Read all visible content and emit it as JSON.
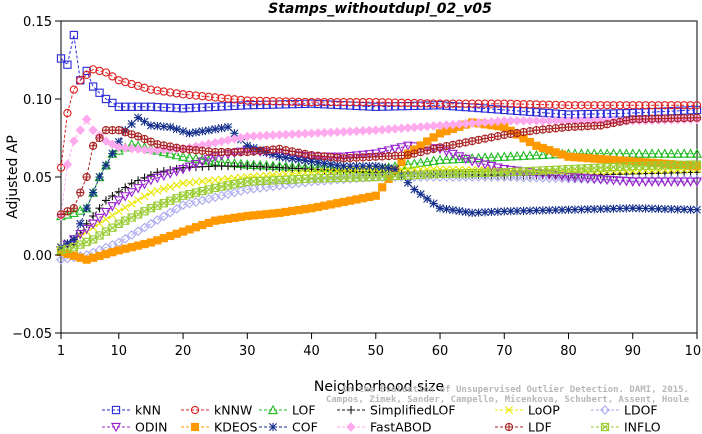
{
  "chart_data": {
    "type": "line",
    "title": "Stamps_withoutdupl_02_v05",
    "xlabel": "Neighborhood size",
    "ylabel": "Adjusted AP",
    "xlim": [
      1,
      100
    ],
    "ylim": [
      -0.05,
      0.15
    ],
    "xticks": [
      1,
      10,
      20,
      30,
      40,
      50,
      60,
      70,
      80,
      90,
      100
    ],
    "yticks": [
      -0.05,
      0.0,
      0.05,
      0.1,
      0.15
    ],
    "ytick_labels": [
      "−0.05",
      "0.00",
      "0.05",
      "0.10",
      "0.15"
    ],
    "grid": false,
    "legend_position": "bottom",
    "series": [
      {
        "name": "kNN",
        "color": "#2a2ad8",
        "marker": "square",
        "points": [
          [
            1,
            0.126
          ],
          [
            2,
            0.122
          ],
          [
            3,
            0.141
          ],
          [
            4,
            0.112
          ],
          [
            5,
            0.118
          ],
          [
            6,
            0.108
          ],
          [
            8,
            0.1
          ],
          [
            10,
            0.095
          ],
          [
            15,
            0.095
          ],
          [
            20,
            0.094
          ],
          [
            30,
            0.096
          ],
          [
            40,
            0.097
          ],
          [
            50,
            0.095
          ],
          [
            60,
            0.096
          ],
          [
            70,
            0.093
          ],
          [
            80,
            0.09
          ],
          [
            90,
            0.091
          ],
          [
            100,
            0.093
          ]
        ]
      },
      {
        "name": "kNNW",
        "color": "#e02020",
        "marker": "circle",
        "points": [
          [
            1,
            0.056
          ],
          [
            2,
            0.091
          ],
          [
            3,
            0.106
          ],
          [
            4,
            0.112
          ],
          [
            6,
            0.119
          ],
          [
            8,
            0.117
          ],
          [
            10,
            0.112
          ],
          [
            15,
            0.106
          ],
          [
            20,
            0.103
          ],
          [
            30,
            0.099
          ],
          [
            40,
            0.098
          ],
          [
            50,
            0.098
          ],
          [
            60,
            0.097
          ],
          [
            70,
            0.097
          ],
          [
            80,
            0.096
          ],
          [
            90,
            0.096
          ],
          [
            100,
            0.096
          ]
        ]
      },
      {
        "name": "LOF",
        "color": "#22bb22",
        "marker": "triangle-up",
        "points": [
          [
            1,
            0.025
          ],
          [
            3,
            0.027
          ],
          [
            5,
            0.03
          ],
          [
            7,
            0.05
          ],
          [
            9,
            0.065
          ],
          [
            12,
            0.071
          ],
          [
            15,
            0.068
          ],
          [
            20,
            0.063
          ],
          [
            25,
            0.06
          ],
          [
            30,
            0.058
          ],
          [
            40,
            0.056
          ],
          [
            50,
            0.055
          ],
          [
            60,
            0.061
          ],
          [
            70,
            0.063
          ],
          [
            80,
            0.065
          ],
          [
            90,
            0.065
          ],
          [
            100,
            0.065
          ]
        ]
      },
      {
        "name": "SimplifiedLOF",
        "color": "#111111",
        "marker": "plus",
        "points": [
          [
            1,
            0.005
          ],
          [
            3,
            0.007
          ],
          [
            5,
            0.02
          ],
          [
            8,
            0.035
          ],
          [
            12,
            0.046
          ],
          [
            16,
            0.053
          ],
          [
            20,
            0.056
          ],
          [
            25,
            0.057
          ],
          [
            30,
            0.057
          ],
          [
            40,
            0.055
          ],
          [
            50,
            0.053
          ],
          [
            60,
            0.052
          ],
          [
            70,
            0.051
          ],
          [
            80,
            0.051
          ],
          [
            90,
            0.052
          ],
          [
            100,
            0.053
          ]
        ]
      },
      {
        "name": "LoOP",
        "color": "#e8e800",
        "marker": "x",
        "points": [
          [
            1,
            0.005
          ],
          [
            5,
            0.015
          ],
          [
            10,
            0.028
          ],
          [
            15,
            0.04
          ],
          [
            20,
            0.046
          ],
          [
            30,
            0.05
          ],
          [
            40,
            0.053
          ],
          [
            50,
            0.055
          ],
          [
            60,
            0.055
          ],
          [
            70,
            0.054
          ],
          [
            80,
            0.053
          ],
          [
            90,
            0.054
          ],
          [
            100,
            0.055
          ]
        ]
      },
      {
        "name": "LDOF",
        "color": "#aaaaee",
        "marker": "diamond",
        "points": [
          [
            1,
            -0.003
          ],
          [
            5,
            0.0
          ],
          [
            10,
            0.008
          ],
          [
            15,
            0.02
          ],
          [
            20,
            0.032
          ],
          [
            30,
            0.042
          ],
          [
            40,
            0.047
          ],
          [
            50,
            0.05
          ],
          [
            60,
            0.05
          ],
          [
            70,
            0.05
          ],
          [
            80,
            0.049
          ],
          [
            90,
            0.048
          ],
          [
            100,
            0.048
          ]
        ]
      },
      {
        "name": "ODIN",
        "color": "#9922cc",
        "marker": "triangle-down",
        "points": [
          [
            1,
            0.003
          ],
          [
            3,
            0.01
          ],
          [
            6,
            0.02
          ],
          [
            10,
            0.035
          ],
          [
            15,
            0.048
          ],
          [
            20,
            0.055
          ],
          [
            25,
            0.063
          ],
          [
            30,
            0.067
          ],
          [
            35,
            0.065
          ],
          [
            40,
            0.063
          ],
          [
            45,
            0.063
          ],
          [
            50,
            0.065
          ],
          [
            55,
            0.07
          ],
          [
            60,
            0.068
          ],
          [
            65,
            0.06
          ],
          [
            70,
            0.055
          ],
          [
            80,
            0.05
          ],
          [
            90,
            0.047
          ],
          [
            100,
            0.047
          ]
        ]
      },
      {
        "name": "KDEOS",
        "color": "#ff9900",
        "marker": "square-filled",
        "points": [
          [
            1,
            0.002
          ],
          [
            5,
            -0.003
          ],
          [
            10,
            0.003
          ],
          [
            15,
            0.008
          ],
          [
            20,
            0.015
          ],
          [
            25,
            0.022
          ],
          [
            30,
            0.025
          ],
          [
            35,
            0.027
          ],
          [
            40,
            0.03
          ],
          [
            45,
            0.034
          ],
          [
            50,
            0.038
          ],
          [
            55,
            0.065
          ],
          [
            60,
            0.078
          ],
          [
            65,
            0.085
          ],
          [
            70,
            0.082
          ],
          [
            75,
            0.07
          ],
          [
            80,
            0.063
          ],
          [
            90,
            0.06
          ],
          [
            100,
            0.057
          ]
        ]
      },
      {
        "name": "COF",
        "color": "#142e8c",
        "marker": "star",
        "points": [
          [
            1,
            0.005
          ],
          [
            3,
            0.01
          ],
          [
            5,
            0.03
          ],
          [
            7,
            0.05
          ],
          [
            9,
            0.065
          ],
          [
            11,
            0.08
          ],
          [
            13,
            0.088
          ],
          [
            15,
            0.083
          ],
          [
            18,
            0.082
          ],
          [
            21,
            0.078
          ],
          [
            24,
            0.08
          ],
          [
            27,
            0.082
          ],
          [
            30,
            0.07
          ],
          [
            35,
            0.063
          ],
          [
            40,
            0.06
          ],
          [
            45,
            0.057
          ],
          [
            50,
            0.057
          ],
          [
            53,
            0.055
          ],
          [
            56,
            0.042
          ],
          [
            60,
            0.03
          ],
          [
            65,
            0.027
          ],
          [
            70,
            0.028
          ],
          [
            80,
            0.029
          ],
          [
            90,
            0.03
          ],
          [
            100,
            0.029
          ]
        ]
      },
      {
        "name": "FastABOD",
        "color": "#ffaaee",
        "marker": "diamond-filled",
        "points": [
          [
            1,
            0.025
          ],
          [
            2,
            0.058
          ],
          [
            3,
            0.073
          ],
          [
            5,
            0.087
          ],
          [
            6,
            0.08
          ],
          [
            8,
            0.073
          ],
          [
            10,
            0.069
          ],
          [
            15,
            0.067
          ],
          [
            20,
            0.068
          ],
          [
            25,
            0.072
          ],
          [
            30,
            0.076
          ],
          [
            40,
            0.078
          ],
          [
            50,
            0.08
          ],
          [
            60,
            0.083
          ],
          [
            70,
            0.086
          ],
          [
            80,
            0.086
          ],
          [
            90,
            0.086
          ],
          [
            100,
            0.087
          ]
        ]
      },
      {
        "name": "LDF",
        "color": "#aa2222",
        "marker": "circle-plus",
        "points": [
          [
            1,
            0.026
          ],
          [
            3,
            0.03
          ],
          [
            5,
            0.05
          ],
          [
            6,
            0.07
          ],
          [
            8,
            0.08
          ],
          [
            10,
            0.08
          ],
          [
            13,
            0.076
          ],
          [
            16,
            0.071
          ],
          [
            20,
            0.068
          ],
          [
            25,
            0.066
          ],
          [
            30,
            0.066
          ],
          [
            35,
            0.068
          ],
          [
            40,
            0.064
          ],
          [
            45,
            0.062
          ],
          [
            50,
            0.063
          ],
          [
            55,
            0.064
          ],
          [
            60,
            0.069
          ],
          [
            65,
            0.073
          ],
          [
            70,
            0.077
          ],
          [
            75,
            0.08
          ],
          [
            80,
            0.082
          ],
          [
            85,
            0.083
          ],
          [
            90,
            0.087
          ],
          [
            100,
            0.088
          ]
        ]
      },
      {
        "name": "INFLO",
        "color": "#99cc33",
        "marker": "square-x",
        "points": [
          [
            1,
            0.003
          ],
          [
            3,
            0.005
          ],
          [
            6,
            0.01
          ],
          [
            10,
            0.02
          ],
          [
            15,
            0.03
          ],
          [
            20,
            0.038
          ],
          [
            25,
            0.043
          ],
          [
            30,
            0.047
          ],
          [
            40,
            0.049
          ],
          [
            50,
            0.05
          ],
          [
            60,
            0.052
          ],
          [
            70,
            0.053
          ],
          [
            80,
            0.055
          ],
          [
            90,
            0.057
          ],
          [
            100,
            0.058
          ]
        ]
      }
    ],
    "watermark_lines": [
      "Campos, Zimek, Sander, Campello, Micenkova, Schubert, Assent, Houle",
      "On the Evaluation of Unsupervised Outlier Detection. DAMI, 2015."
    ]
  }
}
